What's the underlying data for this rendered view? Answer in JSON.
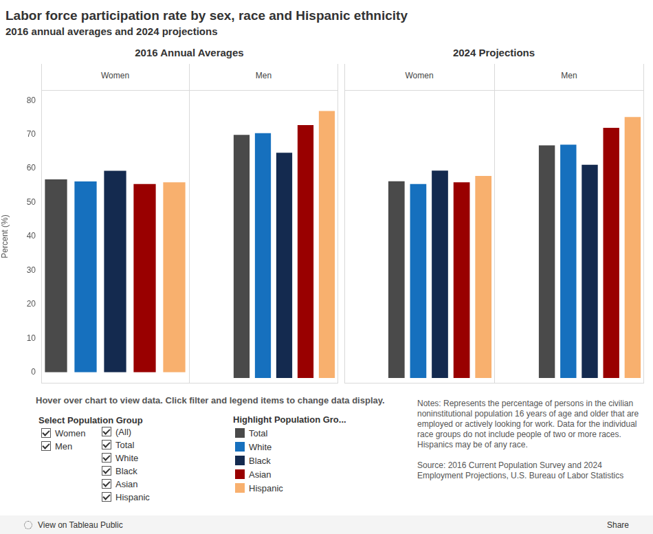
{
  "chart_data": {
    "type": "bar",
    "title": "Labor force participation rate by sex, race and Hispanic ethnicity",
    "subtitle": "2016 annual averages and 2024 projections",
    "y_label": "Percent (%)",
    "ylim": [
      0,
      80
    ],
    "yticks": [
      0,
      10,
      20,
      30,
      40,
      50,
      60,
      70,
      80
    ],
    "grid": false,
    "tick_labels": "y",
    "categories": [
      "Total",
      "White",
      "Black",
      "Asian",
      "Hispanic"
    ],
    "colors": [
      "#4a4a4a",
      "#1670be",
      "#142a4f",
      "#990000",
      "#f8b06e"
    ],
    "panels": [
      {
        "title": "2016 Annual Averages",
        "groups": [
          {
            "title": "Women",
            "values": [
              56.8,
              56.2,
              59.3,
              55.4,
              55.9
            ]
          },
          {
            "title": "Men",
            "values": [
              69.2,
              69.7,
              64.1,
              72.0,
              76.0
            ]
          }
        ]
      },
      {
        "title": "2024 Projections",
        "groups": [
          {
            "title": "Women",
            "values": [
              56.0,
              55.2,
              59.0,
              55.7,
              57.5
            ]
          },
          {
            "title": "Men",
            "values": [
              66.2,
              66.4,
              60.7,
              71.2,
              74.3
            ]
          }
        ]
      }
    ]
  },
  "controls": {
    "hint": "Hover over chart to view data. Click filter and legend items to change data display.",
    "filter_title": "Select Population Group",
    "sex_options": [
      "Women",
      "Men"
    ],
    "group_options": [
      "(All)",
      "Total",
      "White",
      "Black",
      "Asian",
      "Hispanic"
    ],
    "legend_title": "Highlight Population Gro..."
  },
  "notes": "Notes: Represents the percentage of persons in the civilian noninstitutional population 16 years of age and older that are employed or actively looking for work. Data for the individual race groups do not include people of two or more races. Hispanics may be of any race.",
  "source": "Source: 2016 Current Population Survey and 2024 Employment Projections, U.S. Bureau of Labor Statistics",
  "toolbar": {
    "view": "View on Tableau Public",
    "share": "Share"
  }
}
